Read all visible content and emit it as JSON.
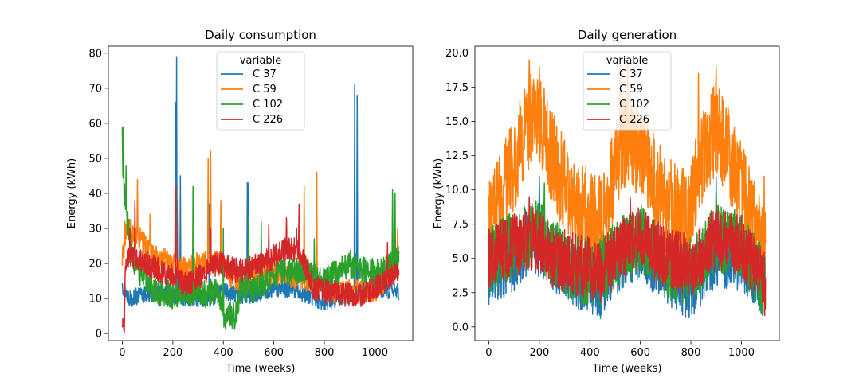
{
  "chart_data": [
    {
      "type": "line",
      "title": "Daily consumption",
      "xlabel": "Time (weeks)",
      "ylabel": "Energy (kWh)",
      "xlim": [
        -55,
        1150
      ],
      "ylim": [
        -2,
        82
      ],
      "xticks": [
        0,
        200,
        400,
        600,
        800,
        1000
      ],
      "yticks": [
        0,
        10,
        20,
        30,
        40,
        50,
        60,
        70,
        80
      ],
      "grid": false,
      "legend": {
        "title": "variable",
        "placement": "upper-center"
      },
      "n_points": 1096,
      "series": [
        {
          "name": "C 37",
          "color": "#1f77b4",
          "keyframes": [
            [
              0,
              14
            ],
            [
              30,
              10
            ],
            [
              80,
              11
            ],
            [
              150,
              12
            ],
            [
              200,
              11
            ],
            [
              260,
              10
            ],
            [
              340,
              10
            ],
            [
              400,
              12
            ],
            [
              460,
              11
            ],
            [
              520,
              11
            ],
            [
              600,
              13
            ],
            [
              700,
              12
            ],
            [
              800,
              9
            ],
            [
              900,
              11
            ],
            [
              1000,
              13
            ],
            [
              1095,
              12
            ]
          ],
          "noise": 2.5,
          "spikes": [
            [
              210,
              66
            ],
            [
              215,
              79
            ],
            [
              230,
              45
            ],
            [
              345,
              37
            ],
            [
              495,
              43
            ],
            [
              500,
              43
            ],
            [
              920,
              71
            ],
            [
              930,
              68
            ]
          ]
        },
        {
          "name": "C 59",
          "color": "#ff7f0e",
          "keyframes": [
            [
              0,
              22
            ],
            [
              20,
              30
            ],
            [
              60,
              28
            ],
            [
              120,
              22
            ],
            [
              200,
              20
            ],
            [
              260,
              18
            ],
            [
              300,
              20
            ],
            [
              360,
              21
            ],
            [
              420,
              17
            ],
            [
              480,
              15
            ],
            [
              560,
              18
            ],
            [
              640,
              17
            ],
            [
              700,
              16
            ],
            [
              760,
              15
            ],
            [
              820,
              12
            ],
            [
              900,
              12
            ],
            [
              960,
              12
            ],
            [
              1020,
              13
            ],
            [
              1095,
              22
            ]
          ],
          "noise": 3.5,
          "spikes": [
            [
              10,
              32
            ],
            [
              60,
              44
            ],
            [
              110,
              34
            ],
            [
              220,
              42
            ],
            [
              340,
              50
            ],
            [
              350,
              52
            ],
            [
              390,
              38
            ],
            [
              700,
              36
            ],
            [
              720,
              42
            ],
            [
              770,
              46
            ],
            [
              1090,
              30
            ]
          ]
        },
        {
          "name": "C 102",
          "color": "#2ca02c",
          "keyframes": [
            [
              0,
              44
            ],
            [
              15,
              36
            ],
            [
              40,
              22
            ],
            [
              80,
              16
            ],
            [
              130,
              12
            ],
            [
              200,
              11
            ],
            [
              260,
              12
            ],
            [
              320,
              11
            ],
            [
              380,
              12
            ],
            [
              400,
              5
            ],
            [
              450,
              5
            ],
            [
              470,
              14
            ],
            [
              520,
              13
            ],
            [
              560,
              14
            ],
            [
              620,
              18
            ],
            [
              700,
              18
            ],
            [
              760,
              16
            ],
            [
              820,
              16
            ],
            [
              900,
              20
            ],
            [
              960,
              18
            ],
            [
              1020,
              17
            ],
            [
              1095,
              21
            ]
          ],
          "noise": 4,
          "spikes": [
            [
              0,
              59
            ],
            [
              5,
              59
            ],
            [
              15,
              48
            ],
            [
              280,
              42
            ],
            [
              400,
              30
            ],
            [
              500,
              33
            ],
            [
              550,
              32
            ],
            [
              640,
              24
            ],
            [
              760,
              27
            ],
            [
              1070,
              41
            ],
            [
              1080,
              40
            ]
          ]
        },
        {
          "name": "C 226",
          "color": "#d62728",
          "keyframes": [
            [
              0,
              3
            ],
            [
              8,
              2.5
            ],
            [
              12,
              20
            ],
            [
              40,
              22
            ],
            [
              100,
              20
            ],
            [
              200,
              16
            ],
            [
              250,
              14
            ],
            [
              300,
              16
            ],
            [
              380,
              20
            ],
            [
              450,
              18
            ],
            [
              520,
              19
            ],
            [
              580,
              21
            ],
            [
              640,
              24
            ],
            [
              700,
              24
            ],
            [
              760,
              13
            ],
            [
              820,
              12
            ],
            [
              880,
              11
            ],
            [
              940,
              11
            ],
            [
              1000,
              13
            ],
            [
              1095,
              18
            ]
          ],
          "noise": 3.5,
          "spikes": [
            [
              30,
              30
            ],
            [
              50,
              38
            ],
            [
              210,
              42
            ],
            [
              220,
              38
            ],
            [
              350,
              30
            ],
            [
              580,
              31
            ],
            [
              650,
              33
            ],
            [
              690,
              30
            ],
            [
              700,
              37
            ],
            [
              1050,
              26
            ]
          ]
        }
      ]
    },
    {
      "type": "line",
      "title": "Daily generation",
      "xlabel": "Time (weeks)",
      "ylabel": "Energy (kWh)",
      "xlim": [
        -55,
        1150
      ],
      "ylim": [
        -1,
        20.5
      ],
      "xticks": [
        0,
        200,
        400,
        600,
        800,
        1000
      ],
      "yticks": [
        0.0,
        2.5,
        5.0,
        7.5,
        10.0,
        12.5,
        15.0,
        17.5,
        20.0
      ],
      "ytick_labels": [
        "0.0",
        "2.5",
        "5.0",
        "7.5",
        "10.0",
        "12.5",
        "15.0",
        "17.5",
        "20.0"
      ],
      "grid": false,
      "legend": {
        "title": "variable",
        "placement": "upper-center"
      },
      "n_points": 1096,
      "series": [
        {
          "name": "C 37",
          "color": "#1f77b4",
          "keyframes": [
            [
              0,
              4
            ],
            [
              100,
              5
            ],
            [
              180,
              6.5
            ],
            [
              260,
              5
            ],
            [
              360,
              3.5
            ],
            [
              440,
              3
            ],
            [
              540,
              5.5
            ],
            [
              600,
              6
            ],
            [
              700,
              4
            ],
            [
              800,
              3
            ],
            [
              900,
              5.5
            ],
            [
              1000,
              5
            ],
            [
              1095,
              3
            ]
          ],
          "noise": 2.5,
          "spikes": [
            [
              200,
              11
            ],
            [
              900,
              11
            ]
          ]
        },
        {
          "name": "C 59",
          "color": "#ff7f0e",
          "keyframes": [
            [
              0,
              7
            ],
            [
              100,
              12
            ],
            [
              160,
              15
            ],
            [
              200,
              15
            ],
            [
              260,
              12
            ],
            [
              330,
              9
            ],
            [
              400,
              8
            ],
            [
              450,
              7.5
            ],
            [
              520,
              13
            ],
            [
              560,
              14
            ],
            [
              620,
              12
            ],
            [
              700,
              9
            ],
            [
              780,
              8
            ],
            [
              840,
              12
            ],
            [
              900,
              14.5
            ],
            [
              960,
              12
            ],
            [
              1040,
              8
            ],
            [
              1095,
              5
            ]
          ],
          "noise": 3.5,
          "spikes": [
            [
              160,
              19.5
            ],
            [
              200,
              19
            ],
            [
              520,
              19
            ],
            [
              550,
              19.3
            ],
            [
              830,
              18.5
            ],
            [
              900,
              19
            ],
            [
              1090,
              11
            ]
          ]
        },
        {
          "name": "C 102",
          "color": "#2ca02c",
          "keyframes": [
            [
              0,
              5
            ],
            [
              100,
              6
            ],
            [
              180,
              7
            ],
            [
              260,
              5.5
            ],
            [
              360,
              4
            ],
            [
              440,
              4
            ],
            [
              540,
              6
            ],
            [
              600,
              6.5
            ],
            [
              700,
              4.5
            ],
            [
              800,
              4
            ],
            [
              900,
              6.5
            ],
            [
              1000,
              6
            ],
            [
              1095,
              3
            ]
          ],
          "noise": 2.5,
          "spikes": [
            [
              220,
              10.5
            ],
            [
              900,
              10
            ]
          ]
        },
        {
          "name": "C 226",
          "color": "#d62728",
          "keyframes": [
            [
              0,
              5
            ],
            [
              100,
              6
            ],
            [
              180,
              6.5
            ],
            [
              260,
              5
            ],
            [
              360,
              4.5
            ],
            [
              440,
              4
            ],
            [
              540,
              6
            ],
            [
              600,
              6.5
            ],
            [
              700,
              5
            ],
            [
              800,
              4.5
            ],
            [
              900,
              6.5
            ],
            [
              1000,
              6
            ],
            [
              1095,
              3
            ]
          ],
          "noise": 2.3,
          "spikes": [
            [
              160,
              9.5
            ],
            [
              560,
              9.5
            ],
            [
              900,
              9
            ]
          ]
        }
      ]
    }
  ]
}
